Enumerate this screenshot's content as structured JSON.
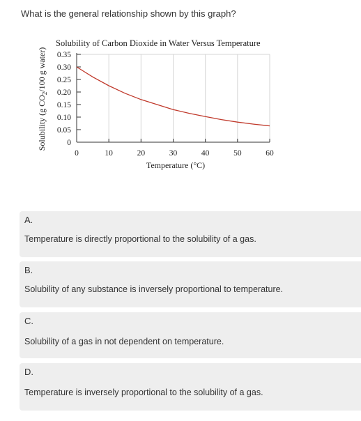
{
  "question": "What is the general relationship shown by this graph?",
  "chart_data": {
    "type": "line",
    "title": "Solubility of Carbon Dioxide in Water Versus Temperature",
    "xlabel": "Temperature (°C)",
    "ylabel_prefix": "Solubility (g CO",
    "ylabel_sub": "2",
    "ylabel_suffix": "/100 g water)",
    "xlim": [
      0,
      60
    ],
    "ylim": [
      0,
      0.35
    ],
    "x_ticks": [
      "0",
      "10",
      "20",
      "30",
      "40",
      "50",
      "60"
    ],
    "y_ticks": [
      "0",
      "0.05",
      "0.10",
      "0.15",
      "0.20",
      "0.25",
      "0.30",
      "0.35"
    ],
    "grid": true,
    "line_color": "#c0392b",
    "series": [
      {
        "x": [
          0,
          5,
          10,
          15,
          20,
          25,
          30,
          35,
          40,
          45,
          50,
          55,
          60
        ],
        "values": [
          0.3,
          0.26,
          0.225,
          0.195,
          0.17,
          0.15,
          0.13,
          0.115,
          0.102,
          0.09,
          0.08,
          0.072,
          0.065
        ]
      }
    ]
  },
  "options": [
    {
      "letter": "A.",
      "text": "Temperature is directly proportional to the solubility of a gas."
    },
    {
      "letter": "B.",
      "text": "Solubility of any substance is inversely proportional to temperature."
    },
    {
      "letter": "C.",
      "text": "Solubility of a gas in not dependent on temperature."
    },
    {
      "letter": "D.",
      "text": "Temperature is inversely proportional to the solubility of a gas."
    }
  ]
}
